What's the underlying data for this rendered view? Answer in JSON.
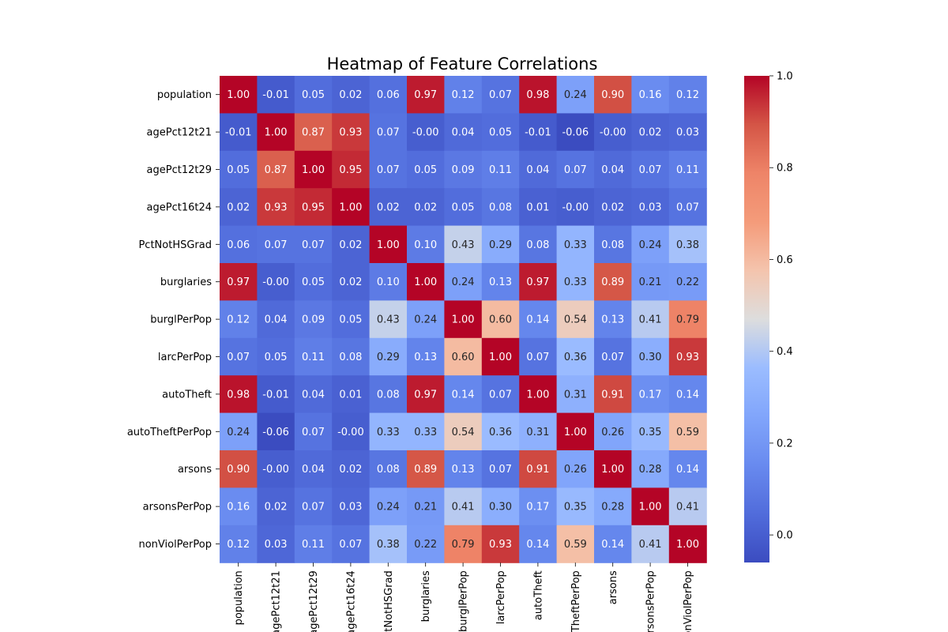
{
  "chart_data": {
    "type": "heatmap",
    "title": "Heatmap of Feature Correlations",
    "xlabel": "",
    "ylabel": "",
    "variables": [
      "population",
      "agePct12t21",
      "agePct12t29",
      "agePct16t24",
      "PctNotHSGrad",
      "burglaries",
      "burglPerPop",
      "larcPerPop",
      "autoTheft",
      "autoTheftPerPop",
      "arsons",
      "arsonsPerPop",
      "nonViolPerPop"
    ],
    "matrix": [
      [
        1.0,
        -0.01,
        0.05,
        0.02,
        0.06,
        0.97,
        0.12,
        0.07,
        0.98,
        0.24,
        0.9,
        0.16,
        0.12
      ],
      [
        -0.01,
        1.0,
        0.87,
        0.93,
        0.07,
        -0.0,
        0.04,
        0.05,
        -0.01,
        -0.06,
        -0.0,
        0.02,
        0.03
      ],
      [
        0.05,
        0.87,
        1.0,
        0.95,
        0.07,
        0.05,
        0.09,
        0.11,
        0.04,
        0.07,
        0.04,
        0.07,
        0.11
      ],
      [
        0.02,
        0.93,
        0.95,
        1.0,
        0.02,
        0.02,
        0.05,
        0.08,
        0.01,
        -0.0,
        0.02,
        0.03,
        0.07
      ],
      [
        0.06,
        0.07,
        0.07,
        0.02,
        1.0,
        0.1,
        0.43,
        0.29,
        0.08,
        0.33,
        0.08,
        0.24,
        0.38
      ],
      [
        0.97,
        -0.0,
        0.05,
        0.02,
        0.1,
        1.0,
        0.24,
        0.13,
        0.97,
        0.33,
        0.89,
        0.21,
        0.22
      ],
      [
        0.12,
        0.04,
        0.09,
        0.05,
        0.43,
        0.24,
        1.0,
        0.6,
        0.14,
        0.54,
        0.13,
        0.41,
        0.79
      ],
      [
        0.07,
        0.05,
        0.11,
        0.08,
        0.29,
        0.13,
        0.6,
        1.0,
        0.07,
        0.36,
        0.07,
        0.3,
        0.93
      ],
      [
        0.98,
        -0.01,
        0.04,
        0.01,
        0.08,
        0.97,
        0.14,
        0.07,
        1.0,
        0.31,
        0.91,
        0.17,
        0.14
      ],
      [
        0.24,
        -0.06,
        0.07,
        -0.0,
        0.33,
        0.33,
        0.54,
        0.36,
        0.31,
        1.0,
        0.26,
        0.35,
        0.59
      ],
      [
        0.9,
        -0.0,
        0.04,
        0.02,
        0.08,
        0.89,
        0.13,
        0.07,
        0.91,
        0.26,
        1.0,
        0.28,
        0.14
      ],
      [
        0.16,
        0.02,
        0.07,
        0.03,
        0.24,
        0.21,
        0.41,
        0.3,
        0.17,
        0.35,
        0.28,
        1.0,
        0.41
      ],
      [
        0.12,
        0.03,
        0.11,
        0.07,
        0.38,
        0.22,
        0.79,
        0.93,
        0.14,
        0.59,
        0.14,
        0.41,
        1.0
      ]
    ],
    "colormap": "coolwarm",
    "vmin": -0.06,
    "vmax": 1.0,
    "colorbar_ticks": [
      "0.0",
      "0.2",
      "0.4",
      "0.6",
      "0.8",
      "1.0"
    ],
    "colorbar_tick_values": [
      0.0,
      0.2,
      0.4,
      0.6,
      0.8,
      1.0
    ],
    "annotation_format": "2 decimals",
    "colors": {
      "low": "#3b4cc0",
      "mid": "#dddddd",
      "high": "#b40426"
    }
  }
}
